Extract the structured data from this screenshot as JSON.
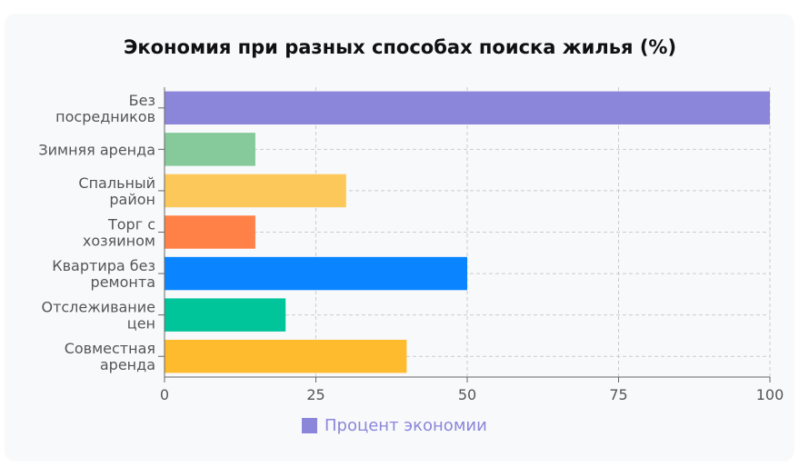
{
  "chart_data": {
    "type": "bar",
    "orientation": "horizontal",
    "title": "Экономия при разных способах поиска жилья (%)",
    "categories": [
      [
        "Без",
        "посредников"
      ],
      [
        "Зимняя аренда"
      ],
      [
        "Спальный",
        "район"
      ],
      [
        "Торг с",
        "хозяином"
      ],
      [
        "Квартира без",
        "ремонта"
      ],
      [
        "Отслеживание",
        "цен"
      ],
      [
        "Совместная",
        "аренда"
      ]
    ],
    "series": [
      {
        "name": "Процент экономии",
        "values": [
          100,
          15,
          30,
          15,
          50,
          20,
          40
        ]
      }
    ],
    "bar_colors": [
      "#8b86d9",
      "#86c99a",
      "#fdc85a",
      "#ff8147",
      "#0a85ff",
      "#00c49a",
      "#fdbb2d"
    ],
    "xlim": [
      0,
      100
    ],
    "xticks": [
      0,
      25,
      50,
      75,
      100
    ],
    "grid": true,
    "legend_position": "bottom"
  }
}
